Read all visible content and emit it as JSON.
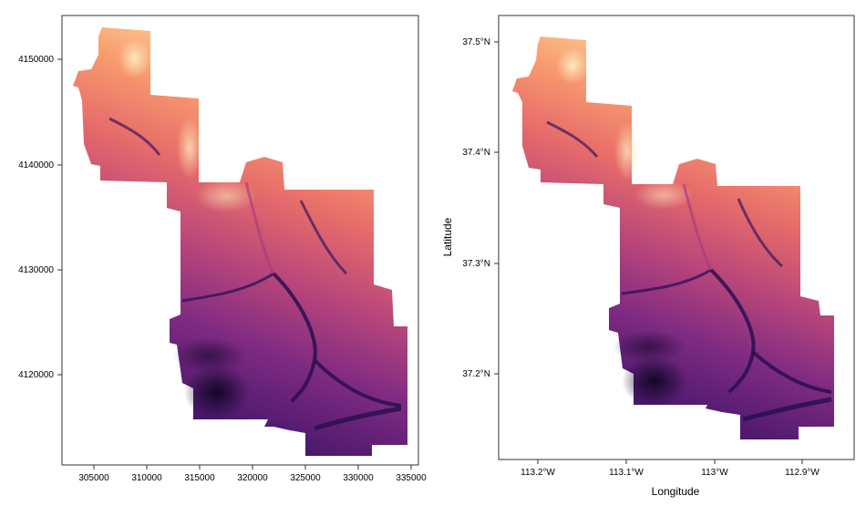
{
  "left_panel": {
    "x_ticks": [
      "305000",
      "310000",
      "315000",
      "320000",
      "325000",
      "330000",
      "335000"
    ],
    "y_ticks": [
      "4120000",
      "4130000",
      "4140000",
      "4150000"
    ]
  },
  "right_panel": {
    "x_ticks": [
      "113.2°W",
      "113.1°W",
      "113°W",
      "112.9°W"
    ],
    "y_ticks": [
      "37.2°N",
      "37.3°N",
      "37.4°N",
      "37.5°N"
    ],
    "x_label": "Longitude",
    "y_label": "Latitude"
  },
  "colors": {
    "low": "#1b0c3b",
    "mid_low": "#5a1f7a",
    "mid": "#a63a7d",
    "mid_high": "#e4656b",
    "high": "#fba36c",
    "peak": "#fde0b0"
  }
}
